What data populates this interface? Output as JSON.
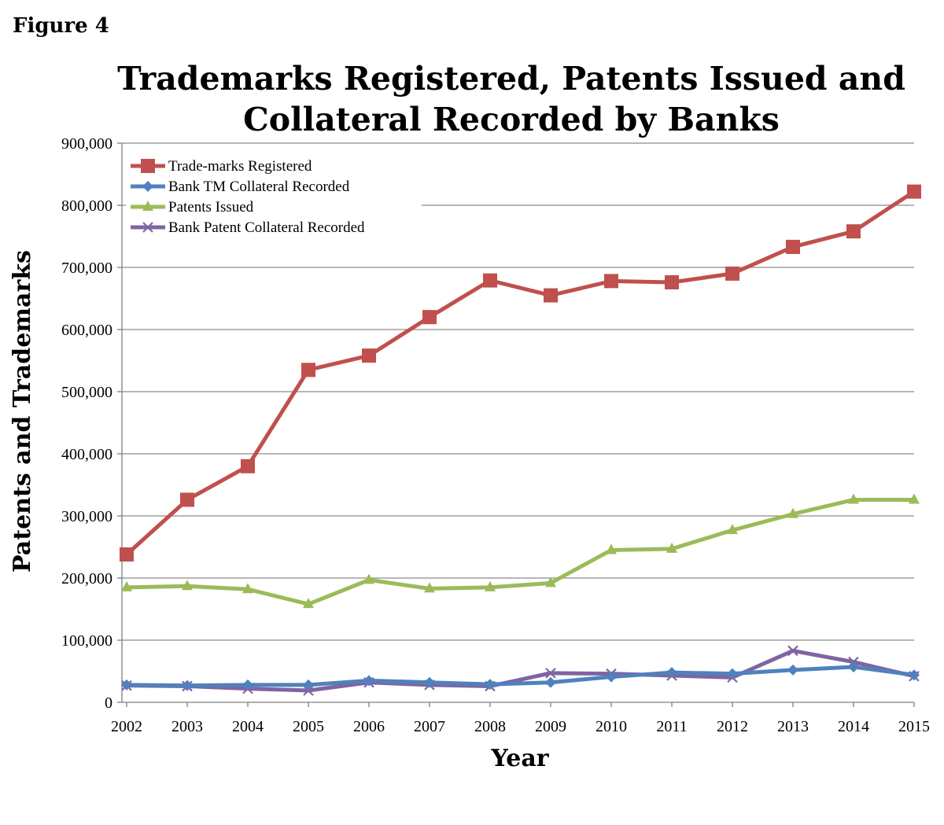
{
  "figure_label": "Figure 4",
  "chart_data": {
    "type": "line",
    "title": [
      "Trademarks Registered, Patents Issued and",
      "Collateral Recorded by Banks"
    ],
    "xlabel": "Year",
    "ylabel": "Patents and Trademarks",
    "ylim": [
      0,
      900000
    ],
    "yticks": [
      0,
      100000,
      200000,
      300000,
      400000,
      500000,
      600000,
      700000,
      800000,
      900000
    ],
    "ytick_labels": [
      "0",
      "100,000",
      "200,000",
      "300,000",
      "400,000",
      "500,000",
      "600,000",
      "700,000",
      "800,000",
      "900,000"
    ],
    "categories": [
      "2002",
      "2003",
      "2004",
      "2005",
      "2006",
      "2007",
      "2008",
      "2009",
      "2010",
      "2011",
      "2012",
      "2013",
      "2014",
      "2015"
    ],
    "grid": "horizontal",
    "legend_position": "top-left",
    "series": [
      {
        "name": "Trade-marks Registered",
        "color": "#C0504D",
        "marker": "square",
        "values": [
          238000,
          326000,
          380000,
          535000,
          558000,
          620000,
          679000,
          655000,
          678000,
          676000,
          690000,
          733000,
          758000,
          822000
        ]
      },
      {
        "name": "Bank TM Collateral Recorded",
        "color": "#4F81BD",
        "marker": "diamond",
        "values": [
          28000,
          27000,
          28000,
          28000,
          35000,
          32000,
          29000,
          32000,
          41000,
          48000,
          46000,
          52000,
          57000,
          44000
        ]
      },
      {
        "name": "Patents Issued",
        "color": "#9BBB59",
        "marker": "triangle",
        "values": [
          185000,
          187000,
          182000,
          158000,
          197000,
          183000,
          185000,
          192000,
          245000,
          247000,
          277000,
          303000,
          326000,
          326000
        ]
      },
      {
        "name": "Bank Patent Collateral Recorded",
        "color": "#8064A2",
        "marker": "x",
        "values": [
          27000,
          26000,
          22000,
          19000,
          32000,
          28000,
          26000,
          47000,
          46000,
          43000,
          40000,
          83000,
          65000,
          42000
        ]
      }
    ]
  }
}
